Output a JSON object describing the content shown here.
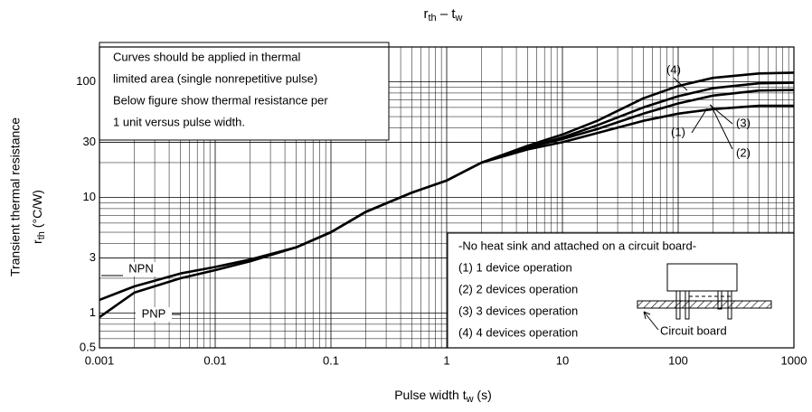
{
  "chart_data": {
    "type": "line",
    "title": [
      "r",
      "th",
      " – t",
      "w"
    ],
    "xlabel": [
      "Pulse width   t",
      "w",
      "   (s)"
    ],
    "ylabel": [
      "Transient thermal resistance",
      "r",
      "th",
      "   (°C/W)"
    ],
    "log_x": true,
    "log_y": true,
    "grid": true,
    "xlim": [
      0.001,
      1000
    ],
    "ylim": [
      0.5,
      200
    ],
    "xticks": [
      0.001,
      0.01,
      0.1,
      1,
      10,
      100,
      1000
    ],
    "yticks": [
      0.5,
      1,
      3,
      10,
      30,
      100
    ],
    "xminor": [
      0.002,
      0.003,
      0.004,
      0.005,
      0.006,
      0.007,
      0.008,
      0.009,
      0.02,
      0.03,
      0.04,
      0.05,
      0.06,
      0.07,
      0.08,
      0.09,
      0.2,
      0.3,
      0.4,
      0.5,
      0.6,
      0.7,
      0.8,
      0.9,
      2,
      3,
      4,
      5,
      6,
      7,
      8,
      9,
      20,
      30,
      40,
      50,
      60,
      70,
      80,
      90,
      200,
      300,
      400,
      500,
      600,
      700,
      800,
      900
    ],
    "yminor": [
      0.6,
      0.7,
      0.8,
      0.9,
      2,
      4,
      5,
      6,
      7,
      8,
      9,
      20,
      40,
      50,
      60,
      70,
      80,
      90
    ],
    "series": [
      {
        "name": "NPN",
        "color": "#000000",
        "x": [
          0.001,
          0.002,
          0.005,
          0.01,
          0.02,
          0.05,
          0.1,
          0.2,
          0.5,
          1,
          2
        ],
        "values": [
          1.3,
          1.7,
          2.2,
          2.5,
          2.9,
          3.7,
          5,
          7.5,
          11,
          14,
          20
        ]
      },
      {
        "name": "PNP",
        "color": "#000000",
        "x": [
          0.001,
          0.002,
          0.005,
          0.01,
          0.02,
          0.05,
          0.1,
          0.2,
          0.5,
          1,
          2
        ],
        "values": [
          0.92,
          1.5,
          2.0,
          2.35,
          2.8,
          3.7,
          5,
          7.5,
          11,
          14,
          20
        ]
      },
      {
        "name": "(1)",
        "color": "#000000",
        "x": [
          2,
          5,
          10,
          20,
          50,
          100,
          200,
          500,
          1000
        ],
        "values": [
          20,
          26,
          30,
          36,
          46,
          53,
          58,
          62,
          62
        ]
      },
      {
        "name": "(2)",
        "color": "#000000",
        "x": [
          2,
          5,
          10,
          20,
          50,
          100,
          200,
          500,
          1000
        ],
        "values": [
          20,
          27,
          32,
          39,
          53,
          65,
          76,
          84,
          85
        ]
      },
      {
        "name": "(3)",
        "color": "#000000",
        "x": [
          2,
          5,
          10,
          20,
          50,
          100,
          200,
          500,
          1000
        ],
        "values": [
          20,
          27,
          33,
          42,
          60,
          75,
          88,
          97,
          98
        ]
      },
      {
        "name": "(4)",
        "color": "#000000",
        "x": [
          2,
          5,
          10,
          20,
          50,
          100,
          200,
          500,
          1000
        ],
        "values": [
          20,
          28,
          35,
          46,
          72,
          92,
          108,
          118,
          120
        ]
      }
    ],
    "note_top": [
      "Curves should be applied in thermal",
      "limited area (single nonrepetitive pulse)",
      "Below figure show thermal resistance per",
      "1 unit versus pulse width."
    ],
    "note_bottom": [
      "-No heat sink and attached on a circuit board-",
      "(1) 1 device operation",
      "(2) 2 devices operation",
      "(3) 3 devices operation",
      "(4) 4 devices operation"
    ],
    "board_label": "Circuit board"
  }
}
